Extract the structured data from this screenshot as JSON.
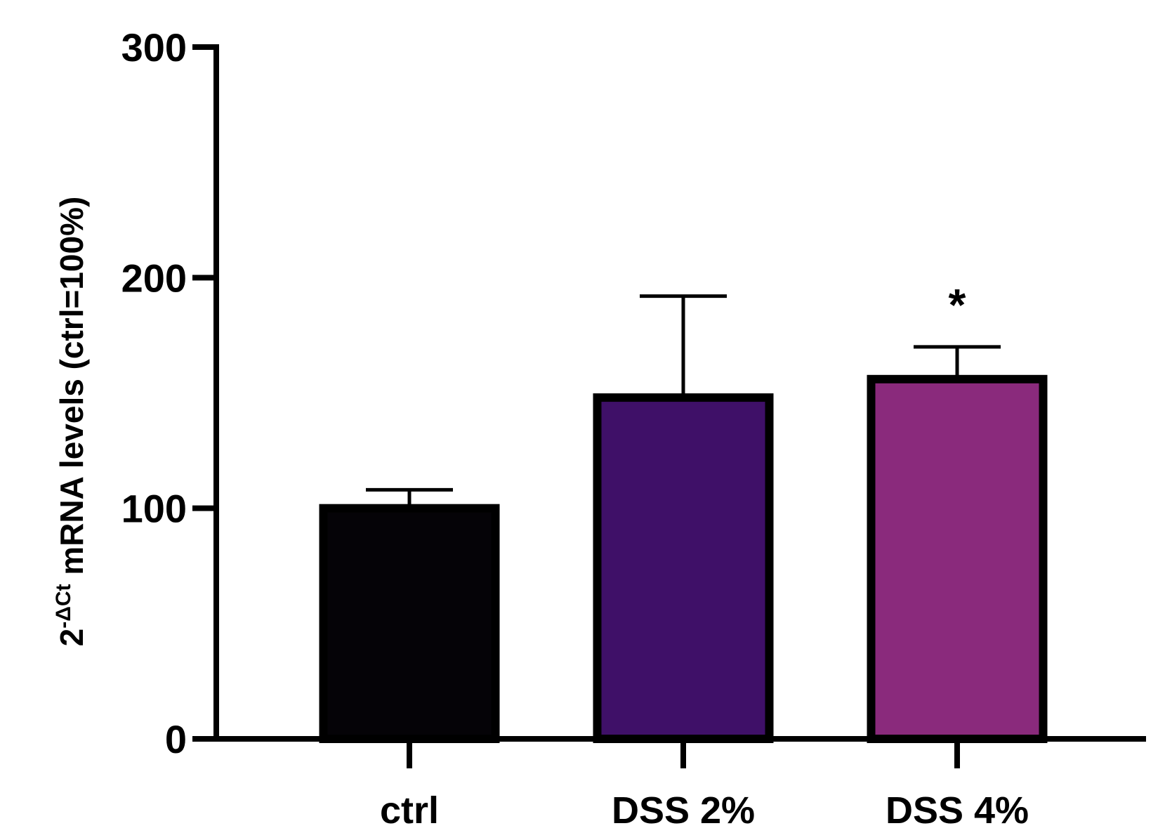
{
  "chart_data": {
    "type": "bar",
    "title": "",
    "xlabel": "",
    "ylabel": {
      "base": "2",
      "superscript": "-ΔCt",
      "text": " mRNA levels (ctrl=100%)"
    },
    "ylim": [
      0,
      300
    ],
    "yticks": [
      "0",
      "100",
      "200",
      "300"
    ],
    "ytick_values": [
      0,
      100,
      200,
      300
    ],
    "categories": [
      "ctrl",
      "DSS 2%",
      "DSS 4%"
    ],
    "values": [
      100,
      148,
      156
    ],
    "errors": [
      8,
      44,
      14
    ],
    "colors": [
      "#050307",
      "#3f1068",
      "#8a2a7c"
    ],
    "annotations": [
      "",
      "",
      "*"
    ],
    "grid": false,
    "legend": "none"
  }
}
